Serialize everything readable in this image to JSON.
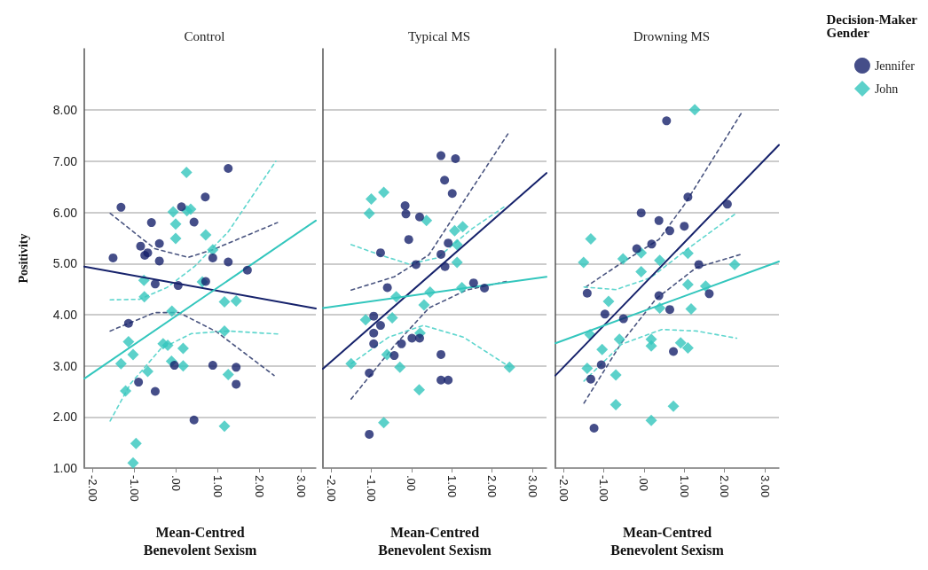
{
  "chart_data": [
    {
      "type": "scatter",
      "title": "Control",
      "xlabel": "Mean-Centred\nBenevolent Sexism",
      "ylabel": "Positivity",
      "grid": "y",
      "legend": false,
      "xlim": [
        -2.2,
        3.35
      ],
      "xticks": [
        {
          "value": -2,
          "label": "-2.00"
        },
        {
          "value": -1,
          "label": "-1.00"
        },
        {
          "value": 0,
          "label": ".00"
        },
        {
          "value": 1,
          "label": "1.00"
        },
        {
          "value": 2,
          "label": "2.00"
        },
        {
          "value": 3,
          "label": "3.00"
        }
      ],
      "ylim": [
        1,
        9.2
      ],
      "yticks": [
        {
          "value": 1,
          "label": "1.00"
        },
        {
          "value": 2,
          "label": "2.00"
        },
        {
          "value": 3,
          "label": "3.00"
        },
        {
          "value": 4,
          "label": "4.00"
        },
        {
          "value": 5,
          "label": "5.00"
        },
        {
          "value": 6,
          "label": "6.00"
        },
        {
          "value": 7,
          "label": "7.00"
        },
        {
          "value": 8,
          "label": "8.00"
        }
      ],
      "series": [
        {
          "type": "scatter",
          "marker": "circle",
          "color": "#16226b",
          "x": [
            -1.51,
            -1.32,
            -1.14,
            -0.9,
            -0.85,
            -0.75,
            -0.68,
            -0.59,
            -0.5,
            -0.5,
            -0.4,
            -0.4,
            -0.04,
            0.05,
            0.13,
            0.43,
            0.43,
            0.7,
            0.71,
            0.88,
            0.88,
            1.25,
            1.25,
            1.44,
            1.44,
            1.71
          ],
          "values": [
            5.11,
            6.1,
            3.83,
            2.68,
            5.34,
            5.16,
            5.21,
            5.8,
            2.5,
            4.6,
            5.39,
            5.05,
            3.01,
            4.57,
            6.11,
            5.81,
            1.94,
            6.3,
            4.65,
            5.11,
            3.01,
            6.86,
            5.03,
            2.97,
            2.64,
            4.87
          ]
        },
        {
          "type": "scatter",
          "marker": "diamond",
          "color": "#33c6bd",
          "x": [
            0.25,
            -0.07,
            -0.01,
            -0.01,
            0.26,
            0.35,
            0.71,
            0.88,
            -0.77,
            -0.76,
            -0.1,
            0.63,
            1.16,
            1.44,
            1.16,
            -1.14,
            -1.03,
            -1.32,
            -0.68,
            -0.31,
            -0.2,
            -0.11,
            0.17,
            0.17,
            1.25,
            -1.21,
            -0.96,
            -1.03,
            1.16
          ],
          "values": [
            6.78,
            6.01,
            5.77,
            5.49,
            6.03,
            6.06,
            5.56,
            5.27,
            4.67,
            4.35,
            4.07,
            4.64,
            4.25,
            4.27,
            3.68,
            3.47,
            3.22,
            3.04,
            2.89,
            3.43,
            3.4,
            3.09,
            3.34,
            3.0,
            2.83,
            2.51,
            1.48,
            1.1,
            1.82
          ]
        },
        {
          "type": "line",
          "marker": "none",
          "line_style": "solid",
          "color": "#16226b",
          "x": [
            -2.2,
            3.35
          ],
          "values": [
            4.94,
            4.12
          ]
        },
        {
          "type": "line",
          "marker": "none",
          "line_style": "solid",
          "color": "#33c6bd",
          "x": [
            -2.2,
            3.35
          ],
          "values": [
            2.75,
            5.84
          ]
        },
        {
          "type": "line",
          "marker": "none",
          "line_style": "dashed",
          "color": "#4a5580",
          "x": [
            -1.58,
            -0.51,
            0.29,
            0.88,
            2.43
          ],
          "values": [
            5.98,
            5.29,
            5.12,
            5.27,
            5.8
          ]
        },
        {
          "type": "line",
          "marker": "none",
          "line_style": "dashed",
          "color": "#4a5580",
          "x": [
            -1.58,
            -0.51,
            0.07,
            0.96,
            2.35
          ],
          "values": [
            3.68,
            4.04,
            4.04,
            3.67,
            2.81
          ]
        },
        {
          "type": "line",
          "marker": "none",
          "line_style": "dashed",
          "color": "#5fd6ce",
          "x": [
            -1.58,
            -0.88,
            -0.22,
            0.44,
            1.25,
            2.39
          ],
          "values": [
            4.29,
            4.3,
            4.53,
            4.94,
            5.62,
            7.0
          ]
        },
        {
          "type": "line",
          "marker": "none",
          "line_style": "dashed",
          "color": "#5fd6ce",
          "x": [
            -1.58,
            -1.1,
            -0.37,
            0.37,
            1.25,
            2.46
          ],
          "values": [
            1.92,
            2.64,
            3.33,
            3.63,
            3.68,
            3.62
          ]
        }
      ]
    },
    {
      "type": "scatter",
      "title": "Typical MS",
      "xlabel": "Mean-Centred\nBenevolent Sexism",
      "grid": "y",
      "legend": false,
      "tick_labels": "x",
      "xlim": [
        -2.2,
        3.35
      ],
      "xticks": [
        {
          "value": -2,
          "label": "-2.00"
        },
        {
          "value": -1,
          "label": "-1.00"
        },
        {
          "value": 0,
          "label": ".00"
        },
        {
          "value": 1,
          "label": "1.00"
        },
        {
          "value": 2,
          "label": "2.00"
        },
        {
          "value": 3,
          "label": "3.00"
        }
      ],
      "ylim": [
        1,
        9.2
      ],
      "yticks": [
        1,
        2,
        3,
        4,
        5,
        6,
        7,
        8
      ],
      "series": [
        {
          "type": "scatter",
          "marker": "circle",
          "color": "#16226b",
          "x": [
            0.73,
            1.09,
            0.82,
            1.01,
            -0.16,
            -0.14,
            0.2,
            -0.07,
            -0.77,
            0.91,
            0.73,
            0.11,
            0.83,
            -0.6,
            1.54,
            1.81,
            -0.94,
            -0.77,
            -0.94,
            -0.94,
            0.01,
            0.2,
            -0.25,
            -0.43,
            0.73,
            -1.05,
            0.73,
            0.91,
            -1.05
          ],
          "values": [
            7.11,
            7.05,
            6.63,
            6.37,
            6.13,
            5.97,
            5.91,
            5.47,
            5.21,
            5.4,
            5.18,
            4.98,
            4.94,
            4.53,
            4.62,
            4.52,
            3.97,
            3.79,
            3.64,
            3.43,
            3.54,
            3.54,
            3.43,
            3.2,
            3.22,
            2.86,
            2.72,
            2.72,
            1.66
          ]
        },
        {
          "type": "scatter",
          "marker": "diamond",
          "color": "#33c6bd",
          "x": [
            -1.0,
            -0.69,
            -1.05,
            0.37,
            1.07,
            1.27,
            1.13,
            1.13,
            1.25,
            0.46,
            -0.38,
            0.31,
            -1.14,
            -0.48,
            0.21,
            -0.61,
            -1.5,
            -0.29,
            2.43,
            0.19,
            -0.69
          ],
          "values": [
            6.26,
            6.39,
            5.98,
            5.84,
            5.64,
            5.72,
            5.37,
            5.02,
            4.53,
            4.44,
            4.35,
            4.19,
            3.9,
            3.94,
            3.64,
            3.22,
            3.04,
            2.97,
            2.97,
            2.53,
            1.89
          ]
        },
        {
          "type": "line",
          "marker": "none",
          "line_style": "solid",
          "color": "#16226b",
          "x": [
            -2.2,
            3.35
          ],
          "values": [
            2.94,
            6.77
          ]
        },
        {
          "type": "line",
          "marker": "none",
          "line_style": "solid",
          "color": "#33c6bd",
          "x": [
            -2.2,
            3.35
          ],
          "values": [
            4.13,
            4.74
          ]
        },
        {
          "type": "line",
          "marker": "none",
          "line_style": "dashed",
          "color": "#4a5580",
          "x": [
            -1.5,
            -0.43,
            0.43,
            1.14,
            2.43
          ],
          "values": [
            4.48,
            4.74,
            5.17,
            6.03,
            7.58
          ]
        },
        {
          "type": "line",
          "marker": "none",
          "line_style": "dashed",
          "color": "#4a5580",
          "x": [
            -1.5,
            -0.43,
            0.43,
            1.36,
            2.36
          ],
          "values": [
            2.35,
            3.39,
            4.13,
            4.48,
            4.65
          ]
        },
        {
          "type": "line",
          "marker": "none",
          "line_style": "dashed",
          "color": "#5fd6ce",
          "x": [
            -1.5,
            -0.79,
            -0.07,
            0.64,
            1.5,
            2.36
          ],
          "values": [
            5.37,
            5.17,
            4.99,
            5.11,
            5.68,
            6.14
          ]
        },
        {
          "type": "line",
          "marker": "none",
          "line_style": "dashed",
          "color": "#5fd6ce",
          "x": [
            -1.5,
            -0.57,
            0.29,
            1.29,
            2.43
          ],
          "values": [
            3.04,
            3.56,
            3.79,
            3.56,
            2.98
          ]
        }
      ]
    },
    {
      "type": "scatter",
      "title": "Drowning MS",
      "xlabel": "Mean-Centred\nBenevolent Sexism",
      "grid": "y",
      "legend": "top right",
      "legend_title": "Decision-Maker\nGender",
      "tick_labels": "x",
      "xlim": [
        -2.2,
        3.35
      ],
      "xticks": [
        {
          "value": -2,
          "label": "-2.00"
        },
        {
          "value": -1,
          "label": "-1.00"
        },
        {
          "value": 0,
          "label": ".00"
        },
        {
          "value": 1,
          "label": "1.00"
        },
        {
          "value": 2,
          "label": "2.00"
        },
        {
          "value": 3,
          "label": "3.00"
        }
      ],
      "ylim": [
        1,
        9.2
      ],
      "yticks": [
        1,
        2,
        3,
        4,
        5,
        6,
        7,
        8
      ],
      "series": [
        {
          "name": "Jennifer",
          "type": "scatter",
          "marker": "circle",
          "color": "#16226b",
          "x": [
            0.56,
            1.09,
            2.07,
            -0.07,
            0.37,
            0.64,
            1.0,
            0.19,
            -0.18,
            1.36,
            -1.41,
            1.62,
            0.37,
            -0.97,
            0.64,
            -0.51,
            0.73,
            -1.06,
            -1.32,
            -1.24
          ],
          "values": [
            7.79,
            6.3,
            6.16,
            5.99,
            5.84,
            5.64,
            5.73,
            5.38,
            5.29,
            4.98,
            4.42,
            4.41,
            4.37,
            4.01,
            4.1,
            3.92,
            3.28,
            3.02,
            2.74,
            1.78
          ]
        },
        {
          "name": "John",
          "type": "scatter",
          "marker": "diamond",
          "color": "#33c6bd",
          "x": [
            1.26,
            -1.32,
            -1.5,
            -0.52,
            -0.07,
            0.39,
            -0.07,
            1.09,
            2.25,
            1.09,
            1.53,
            -0.88,
            0.39,
            1.17,
            -1.34,
            -0.61,
            0.18,
            0.18,
            0.91,
            1.09,
            -1.04,
            -1.41,
            -0.7,
            -0.7,
            0.73,
            0.18
          ],
          "values": [
            8.01,
            5.48,
            5.02,
            5.09,
            5.21,
            5.06,
            4.84,
            5.2,
            4.98,
            4.59,
            4.56,
            4.26,
            4.13,
            4.11,
            3.61,
            3.52,
            3.52,
            3.39,
            3.45,
            3.35,
            3.32,
            2.95,
            2.82,
            2.24,
            2.21,
            1.93
          ]
        },
        {
          "type": "line",
          "marker": "none",
          "line_style": "solid",
          "color": "#16226b",
          "x": [
            -2.2,
            3.35
          ],
          "values": [
            2.81,
            7.32
          ]
        },
        {
          "type": "line",
          "marker": "none",
          "line_style": "solid",
          "color": "#33c6bd",
          "x": [
            -2.2,
            3.35
          ],
          "values": [
            3.44,
            5.04
          ]
        },
        {
          "type": "line",
          "marker": "none",
          "line_style": "dashed",
          "color": "#4a5580",
          "x": [
            -1.45,
            -0.56,
            0.37,
            1.01,
            2.44
          ],
          "values": [
            4.54,
            5.01,
            5.47,
            6.16,
            7.97
          ]
        },
        {
          "type": "line",
          "marker": "none",
          "line_style": "dashed",
          "color": "#4a5580",
          "x": [
            -1.49,
            -0.56,
            0.3,
            1.3,
            2.41
          ],
          "values": [
            2.27,
            3.45,
            4.31,
            4.92,
            5.18
          ]
        },
        {
          "type": "line",
          "marker": "none",
          "line_style": "dashed",
          "color": "#5fd6ce",
          "x": [
            -1.49,
            -0.7,
            0.16,
            1.09,
            2.3
          ],
          "values": [
            4.54,
            4.49,
            4.72,
            5.29,
            5.99
          ]
        },
        {
          "type": "line",
          "marker": "none",
          "line_style": "dashed",
          "color": "#5fd6ce",
          "x": [
            -1.49,
            -0.56,
            0.44,
            1.3,
            2.3
          ],
          "values": [
            2.7,
            3.42,
            3.71,
            3.68,
            3.54
          ]
        }
      ]
    }
  ]
}
